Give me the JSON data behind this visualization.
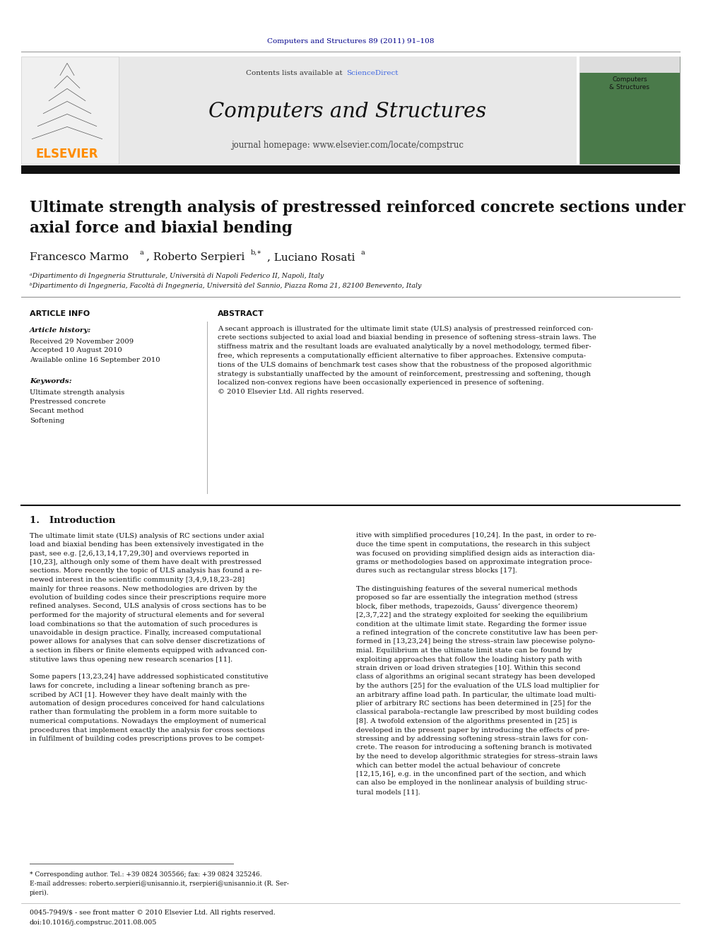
{
  "page_width": 9.92,
  "page_height": 13.23,
  "bg_color": "#ffffff",
  "journal_ref": "Computers and Structures 89 (2011) 91–108",
  "header_bg": "#e8e8e8",
  "header_journal_name": "Computers and Structures",
  "header_contents_text": "Contents lists available at ",
  "header_sciencedirect": "ScienceDirect",
  "header_homepage": "journal homepage: www.elsevier.com/locate/compstruc",
  "elsevier_color": "#FF8C00",
  "elsevier_text": "ELSEVIER",
  "title_line1": "Ultimate strength analysis of prestressed reinforced concrete sections under",
  "title_line2": "axial force and biaxial bending",
  "affil_a": "ᵃDipartimento di Ingegneria Strutturale, Università di Napoli Federico II, Napoli, Italy",
  "affil_b": "ᵇDipartimento di Ingegneria, Facoltà di Ingegneria, Università del Sannio, Piazza Roma 21, 82100 Benevento, Italy",
  "article_info_label": "ARTICLE INFO",
  "abstract_label": "ABSTRACT",
  "article_history_label": "Article history:",
  "received": "Received 29 November 2009",
  "accepted": "Accepted 10 August 2010",
  "available": "Available online 16 September 2010",
  "keywords_label": "Keywords:",
  "kw1": "Ultimate strength analysis",
  "kw2": "Prestressed concrete",
  "kw3": "Secant method",
  "kw4": "Softening",
  "abstract_lines": [
    "A secant approach is illustrated for the ultimate limit state (ULS) analysis of prestressed reinforced con-",
    "crete sections subjected to axial load and biaxial bending in presence of softening stress–strain laws. The",
    "stiffness matrix and the resultant loads are evaluated analytically by a novel methodology, termed fiber-",
    "free, which represents a computationally efficient alternative to fiber approaches. Extensive computa-",
    "tions of the ULS domains of benchmark test cases show that the robustness of the proposed algorithmic",
    "strategy is substantially unaffected by the amount of reinforcement, prestressing and softening, though",
    "localized non-convex regions have been occasionally experienced in presence of softening."
  ],
  "abstract_copyright": "© 2010 Elsevier Ltd. All rights reserved.",
  "intro_heading": "1.   Introduction",
  "col1_lines": [
    "The ultimate limit state (ULS) analysis of RC sections under axial",
    "load and biaxial bending has been extensively investigated in the",
    "past, see e.g. [2,6,13,14,17,29,30] and overviews reported in",
    "[10,23], although only some of them have dealt with prestressed",
    "sections. More recently the topic of ULS analysis has found a re-",
    "newed interest in the scientific community [3,4,9,18,23–28]",
    "mainly for three reasons. New methodologies are driven by the",
    "evolution of building codes since their prescriptions require more",
    "refined analyses. Second, ULS analysis of cross sections has to be",
    "performed for the majority of structural elements and for several",
    "load combinations so that the automation of such procedures is",
    "unavoidable in design practice. Finally, increased computational",
    "power allows for analyses that can solve denser discretizations of",
    "a section in fibers or finite elements equipped with advanced con-",
    "stitutive laws thus opening new research scenarios [11].",
    "",
    "Some papers [13,23,24] have addressed sophisticated constitutive",
    "laws for concrete, including a linear softening branch as pre-",
    "scribed by ACI [1]. However they have dealt mainly with the",
    "automation of design procedures conceived for hand calculations",
    "rather than formulating the problem in a form more suitable to",
    "numerical computations. Nowadays the employment of numerical",
    "procedures that implement exactly the analysis for cross sections",
    "in fulfilment of building codes prescriptions proves to be compet-"
  ],
  "col2_lines": [
    "itive with simplified procedures [10,24]. In the past, in order to re-",
    "duce the time spent in computations, the research in this subject",
    "was focused on providing simplified design aids as interaction dia-",
    "grams or methodologies based on approximate integration proce-",
    "dures such as rectangular stress blocks [17].",
    "",
    "The distinguishing features of the several numerical methods",
    "proposed so far are essentially the integration method (stress",
    "block, fiber methods, trapezoids, Gauss’ divergence theorem)",
    "[2,3,7,22] and the strategy exploited for seeking the equilibrium",
    "condition at the ultimate limit state. Regarding the former issue",
    "a refined integration of the concrete constitutive law has been per-",
    "formed in [13,23,24] being the stress–strain law piecewise polyno-",
    "mial. Equilibrium at the ultimate limit state can be found by",
    "exploiting approaches that follow the loading history path with",
    "strain driven or load driven strategies [10]. Within this second",
    "class of algorithms an original secant strategy has been developed",
    "by the authors [25] for the evaluation of the ULS load multiplier for",
    "an arbitrary affine load path. In particular, the ultimate load multi-",
    "plier of arbitrary RC sections has been determined in [25] for the",
    "classical parabola–rectangle law prescribed by most building codes",
    "[8]. A twofold extension of the algorithms presented in [25] is",
    "developed in the present paper by introducing the effects of pre-",
    "stressing and by addressing softening stress–strain laws for con-",
    "crete. The reason for introducing a softening branch is motivated",
    "by the need to develop algorithmic strategies for stress–strain laws",
    "which can better model the actual behaviour of concrete",
    "[12,15,16], e.g. in the unconfined part of the section, and which",
    "can also be employed in the nonlinear analysis of building struc-",
    "tural models [11]."
  ],
  "footnote_star": "* Corresponding author. Tel.: +39 0824 305566; fax: +39 0824 325246.",
  "footnote_email": "E-mail addresses: roberto.serpieri@unisannio.it, rserpieri@unisannio.it (R. Ser-",
  "footnote_email2": "pieri).",
  "footer_issn": "0045-7949/$ - see front matter © 2010 Elsevier Ltd. All rights reserved.",
  "footer_doi": "doi:10.1016/j.compstruc.2011.08.005",
  "dark_navy": "#00008B",
  "sciencedirect_color": "#4169E1",
  "thick_bar_color": "#111111"
}
